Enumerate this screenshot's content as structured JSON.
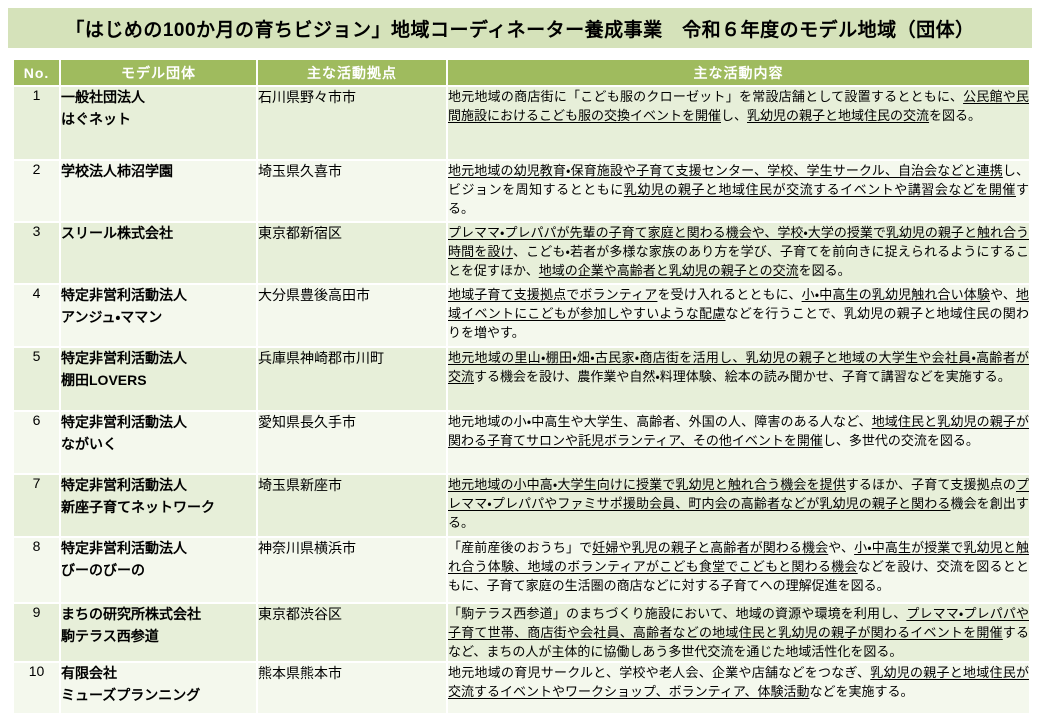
{
  "title": "「はじめの100か月の育ちビジョン」地域コーディネーター養成事業　令和６年度のモデル地域（団体）",
  "colors": {
    "title_bar_bg": "#d5e2ba",
    "header_bg": "#9fbb5e",
    "header_text": "#ffffff",
    "row_odd_bg": "#e7efd9",
    "row_even_bg": "#f4f8ed",
    "text": "#000000"
  },
  "table": {
    "columns": [
      "No.",
      "モデル団体",
      "主な活動拠点",
      "主な活動内容"
    ],
    "rows": [
      {
        "no": "1",
        "org_lines": [
          "一般社団法人",
          "はぐネット"
        ],
        "base": "石川県野々市市",
        "content": [
          {
            "t": "地元地域の商店街に「こども服のクローゼット」を常設店舗として設置するとともに、",
            "u": false
          },
          {
            "t": "公民館や民間施設におけるこども服の交換イベントを開催",
            "u": true
          },
          {
            "t": "し、",
            "u": false
          },
          {
            "t": "乳幼児の親子と地域住民の交流",
            "u": true
          },
          {
            "t": "を図る。",
            "u": false
          }
        ]
      },
      {
        "no": "2",
        "org_lines": [
          "学校法人柿沼学園"
        ],
        "base": "埼玉県久喜市",
        "content": [
          {
            "t": "地元地域の幼児教育・保育施設や子育て支援センター、学校、学生サークル、自治会などと連携",
            "u": true
          },
          {
            "t": "し、ビジョンを周知するとともに",
            "u": false
          },
          {
            "t": "乳幼児の親子と地域住民が交流するイベントや講習会などを開催",
            "u": true
          },
          {
            "t": "する。",
            "u": false
          }
        ]
      },
      {
        "no": "3",
        "org_lines": [
          "スリール株式会社"
        ],
        "base": "東京都新宿区",
        "content": [
          {
            "t": "プレママ・プレパパが先輩の子育て家庭と関わる機会や、学校・大学の授業で乳幼児の親子と触れ合う時間を設け",
            "u": true
          },
          {
            "t": "、こども・若者が多様な家族のあり方を学び、子育てを前向きに捉えられるようにすることを促すほか、",
            "u": false
          },
          {
            "t": "地域の企業や高齢者と乳幼児の親子との交流",
            "u": true
          },
          {
            "t": "を図る。",
            "u": false
          }
        ]
      },
      {
        "no": "4",
        "org_lines": [
          "特定非営利活動法人",
          "アンジュ・ママン"
        ],
        "base": "大分県豊後高田市",
        "content": [
          {
            "t": "地域子育て支援拠点でボランティア",
            "u": true
          },
          {
            "t": "を受け入れるとともに、",
            "u": false
          },
          {
            "t": "小・中高生の乳幼児触れ合い体験",
            "u": true
          },
          {
            "t": "や、",
            "u": false
          },
          {
            "t": "地域イベントにこどもが参加しやすいような配慮",
            "u": true
          },
          {
            "t": "などを行うことで、乳幼児の親子と地域住民の関わりを増やす。",
            "u": false
          }
        ]
      },
      {
        "no": "5",
        "org_lines": [
          "特定非営利活動法人",
          "棚田LOVERS"
        ],
        "base": "兵庫県神崎郡市川町",
        "content": [
          {
            "t": "地元地域の里山・棚田・畑・古民家・商店街を活用し、乳幼児の親子と地域の大学生や会社員・高齢者が交流",
            "u": true
          },
          {
            "t": "する機会を設け、農作業や自然・料理体験、絵本の読み聞かせ、子育て講習などを実施する。",
            "u": false
          }
        ]
      },
      {
        "no": "6",
        "org_lines": [
          "特定非営利活動法人",
          "ながいく"
        ],
        "base": "愛知県長久手市",
        "content": [
          {
            "t": "地元地域の小・中高生や大学生、高齢者、外国の人、障害のある人など、",
            "u": false
          },
          {
            "t": "地域住民と乳幼児の親子が関わる子育てサロンや託児ボランティア、その他イベントを開催",
            "u": true
          },
          {
            "t": "し、多世代の交流を図る。",
            "u": false
          }
        ]
      },
      {
        "no": "7",
        "org_lines": [
          "特定非営利活動法人",
          "新座子育てネットワーク"
        ],
        "base": "埼玉県新座市",
        "content": [
          {
            "t": "地元地域の小中高・大学生向けに授業で乳幼児と触れ合う機会を提供",
            "u": true
          },
          {
            "t": "するほか、子育て支援拠点の",
            "u": false
          },
          {
            "t": "プレママ・プレパパやファミサポ援助会員、町内会の高齢者などが乳幼児の親子と関わる",
            "u": true
          },
          {
            "t": "機会を創出する。",
            "u": false
          }
        ]
      },
      {
        "no": "8",
        "org_lines": [
          "特定非営利活動法人",
          "びーのびーの"
        ],
        "base": "神奈川県横浜市",
        "content": [
          {
            "t": "「産前産後のおうち」で",
            "u": false
          },
          {
            "t": "妊婦や乳児の親子と高齢者が関わる機会",
            "u": true
          },
          {
            "t": "や、",
            "u": false
          },
          {
            "t": "小・中高生が授業で乳幼児と触れ合う体験、地域のボランティアがこども食堂でこどもと関わる機会",
            "u": true
          },
          {
            "t": "などを設け、交流を図るとともに、子育て家庭の生活圏の商店などに対する子育てへの理解促進を図る。",
            "u": false
          }
        ]
      },
      {
        "no": "9",
        "org_lines": [
          "まちの研究所株式会社",
          "駒テラス西参道"
        ],
        "base": "東京都渋谷区",
        "content": [
          {
            "t": "「駒テラス西参道」のまちづくり施設において、地域の資源や環境を利用し、",
            "u": false
          },
          {
            "t": "プレママ・プレパパや子育て世帯、商店街や会社員、高齢者などの地域住民と乳幼児の親子が関わるイベントを開催",
            "u": true
          },
          {
            "t": "するなど、まちの人が主体的に協働しあう多世代交流を通じた地域活性化を図る。",
            "u": false
          }
        ]
      },
      {
        "no": "10",
        "org_lines": [
          "有限会社",
          "ミューズプランニング"
        ],
        "base": "熊本県熊本市",
        "content": [
          {
            "t": "地元地域の育児サークルと、学校や老人会、企業や店舗などをつなぎ、",
            "u": false
          },
          {
            "t": "乳幼児の親子と地域住民が交流するイベントやワークショップ、ボランティア、体験活動",
            "u": true
          },
          {
            "t": "などを実施する。",
            "u": false
          }
        ]
      }
    ]
  }
}
